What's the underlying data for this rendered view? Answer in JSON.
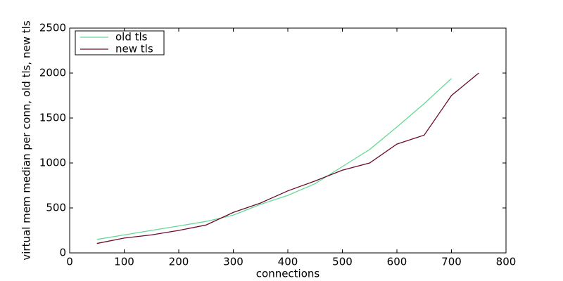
{
  "chart_data": {
    "type": "line",
    "xlabel": "connections",
    "ylabel": "virtual mem median per conn, old tls, new tls",
    "x": [
      50,
      100,
      150,
      200,
      250,
      300,
      350,
      400,
      450,
      500,
      550,
      600,
      650,
      700,
      750
    ],
    "series": [
      {
        "name": "old tls",
        "color": "#66d996",
        "values": [
          150,
          200,
          250,
          300,
          350,
          420,
          540,
          640,
          770,
          960,
          1150,
          1400,
          1660,
          1940,
          null
        ]
      },
      {
        "name": "new tls",
        "color": "#6b0a2b",
        "values": [
          105,
          165,
          200,
          250,
          310,
          450,
          555,
          690,
          800,
          920,
          1000,
          1210,
          1310,
          1750,
          2000
        ]
      }
    ],
    "xlim": [
      0,
      800
    ],
    "xticks": [
      0,
      100,
      200,
      300,
      400,
      500,
      600,
      700,
      800
    ],
    "ylim": [
      0,
      2500
    ],
    "yticks": [
      0,
      500,
      1000,
      1500,
      2000,
      2500
    ],
    "legend": "upper left"
  }
}
